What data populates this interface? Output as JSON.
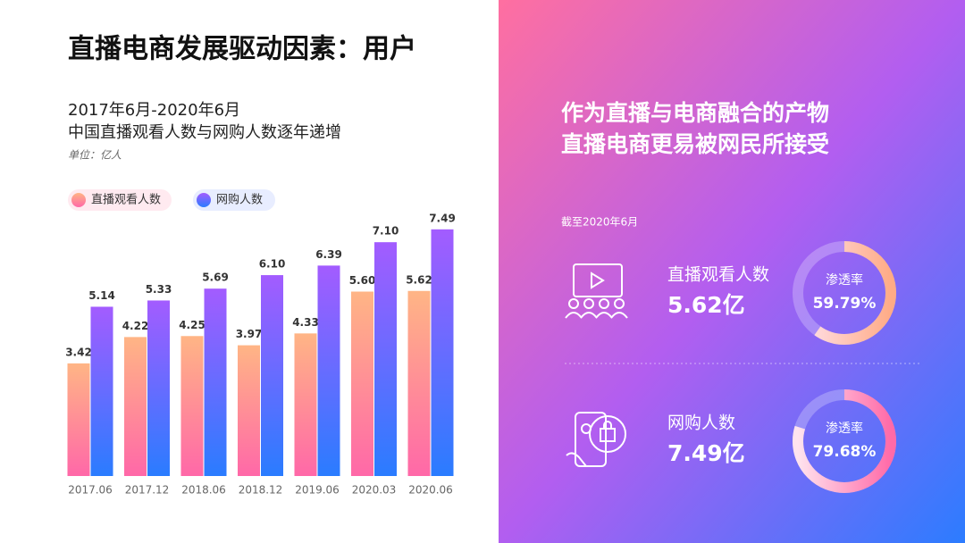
{
  "header": {
    "title": "直播电商发展驱动因素：用户",
    "subtitle_lines": [
      "2017年6月-2020年6月",
      "中国直播观看人数与网购人数逐年递增"
    ],
    "unit": "单位：亿人"
  },
  "chart_data": {
    "type": "bar",
    "categories": [
      "2017.06",
      "2017.12",
      "2018.06",
      "2018.12",
      "2019.06",
      "2020.03",
      "2020.06"
    ],
    "series": [
      {
        "name": "直播观看人数",
        "color": [
          "#ffb585",
          "#ff68a8"
        ],
        "values": [
          3.42,
          4.22,
          4.25,
          3.97,
          4.33,
          5.6,
          5.62
        ],
        "value_labels": [
          "3.42",
          "4.22",
          "4.25",
          "3.97",
          "4.33",
          "5.60",
          "5.62"
        ]
      },
      {
        "name": "网购人数",
        "color": [
          "#a35cff",
          "#2a7cff"
        ],
        "values": [
          5.14,
          5.33,
          5.69,
          6.1,
          6.39,
          7.1,
          7.49
        ],
        "value_labels": [
          "5.14",
          "5.33",
          "5.69",
          "6.10",
          "6.39",
          "7.10",
          "7.49"
        ]
      }
    ],
    "ylim": [
      0,
      8
    ]
  },
  "panel": {
    "heading_lines": [
      "作为直播与电商融合的产物",
      "直播电商更易被网民所接受"
    ],
    "as_of": "截至2020年6月",
    "stats": [
      {
        "label": "直播观看人数",
        "value": "5.62亿",
        "rate_caption": "渗透率",
        "rate": 59.79,
        "rate_label": "59.79%"
      },
      {
        "label": "网购人数",
        "value": "7.49亿",
        "rate_caption": "渗透率",
        "rate": 79.68,
        "rate_label": "79.68%"
      }
    ]
  }
}
